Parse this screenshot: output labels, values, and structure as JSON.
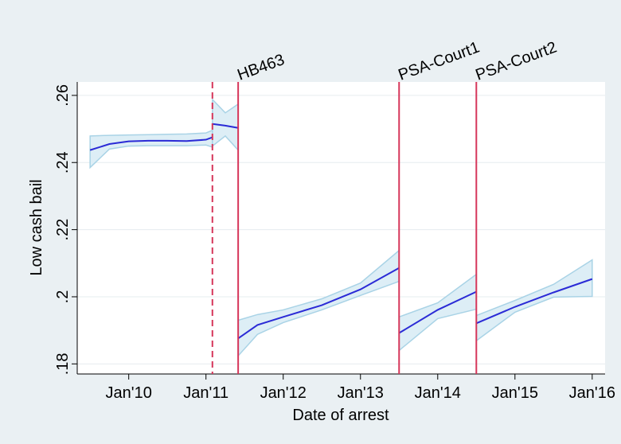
{
  "chart_data": {
    "type": "line",
    "xlabel": "Date of arrest",
    "ylabel": "Low cash bail",
    "xlim": [
      "2009-05",
      "2016-03"
    ],
    "xticks": [
      {
        "value": "2010-01",
        "label": "Jan'10"
      },
      {
        "value": "2011-01",
        "label": "Jan'11"
      },
      {
        "value": "2012-01",
        "label": "Jan'12"
      },
      {
        "value": "2013-01",
        "label": "Jan'13"
      },
      {
        "value": "2014-01",
        "label": "Jan'14"
      },
      {
        "value": "2015-01",
        "label": "Jan'15"
      },
      {
        "value": "2016-01",
        "label": "Jan'16"
      }
    ],
    "ylim": [
      0.177,
      0.264
    ],
    "yticks": [
      {
        "value": 0.18,
        "label": ".18"
      },
      {
        "value": 0.2,
        "label": ".2"
      },
      {
        "value": 0.22,
        "label": ".22"
      },
      {
        "value": 0.24,
        "label": ".24"
      },
      {
        "value": 0.26,
        "label": ".26"
      }
    ],
    "grid": true,
    "line_color": "#2b2bd6",
    "band_color": "#ddeef6",
    "band_edge_color": "#a9d3e6",
    "event_color": "#d6365a",
    "segments": [
      {
        "x": [
          "2009-07",
          "2009-10",
          "2010-01",
          "2010-04",
          "2010-07",
          "2010-10",
          "2011-01",
          "2011-02"
        ],
        "values": [
          0.2437,
          0.2455,
          0.2463,
          0.2465,
          0.2465,
          0.2464,
          0.2468,
          0.2475
        ],
        "lower": [
          0.2385,
          0.244,
          0.2449,
          0.245,
          0.245,
          0.245,
          0.2452,
          0.2446
        ],
        "upper": [
          0.2479,
          0.2481,
          0.2482,
          0.2483,
          0.2484,
          0.2485,
          0.2488,
          0.2496
        ]
      },
      {
        "x": [
          "2011-02",
          "2011-04",
          "2011-06"
        ],
        "values": [
          0.2515,
          0.251,
          0.2503
        ],
        "lower": [
          0.2449,
          0.2479,
          0.2437
        ],
        "upper": [
          0.2588,
          0.2548,
          0.2574
        ]
      },
      {
        "x": [
          "2011-06",
          "2011-09",
          "2012-01",
          "2012-07",
          "2013-01",
          "2013-07"
        ],
        "values": [
          0.1876,
          0.1916,
          0.194,
          0.1975,
          0.2022,
          0.2086
        ],
        "lower": [
          0.1824,
          0.1888,
          0.1923,
          0.1961,
          0.2004,
          0.2046
        ],
        "upper": [
          0.193,
          0.1947,
          0.1961,
          0.1994,
          0.2041,
          0.2138
        ]
      },
      {
        "x": [
          "2013-07",
          "2014-01",
          "2014-07"
        ],
        "values": [
          0.1892,
          0.1961,
          0.2015
        ],
        "lower": [
          0.184,
          0.1935,
          0.1963
        ],
        "upper": [
          0.194,
          0.1982,
          0.2067
        ]
      },
      {
        "x": [
          "2014-07",
          "2015-01",
          "2015-07",
          "2016-01"
        ],
        "values": [
          0.1921,
          0.197,
          0.2013,
          0.2053
        ],
        "lower": [
          0.1869,
          0.1954,
          0.1999,
          0.2001
        ],
        "upper": [
          0.1944,
          0.1989,
          0.2037,
          0.211
        ]
      }
    ],
    "dashed_lines": [
      "2011-02"
    ],
    "events": [
      {
        "x": "2011-06",
        "label": "HB463"
      },
      {
        "x": "2013-07",
        "label": "PSA-Court1"
      },
      {
        "x": "2014-07",
        "label": "PSA-Court2"
      }
    ]
  }
}
